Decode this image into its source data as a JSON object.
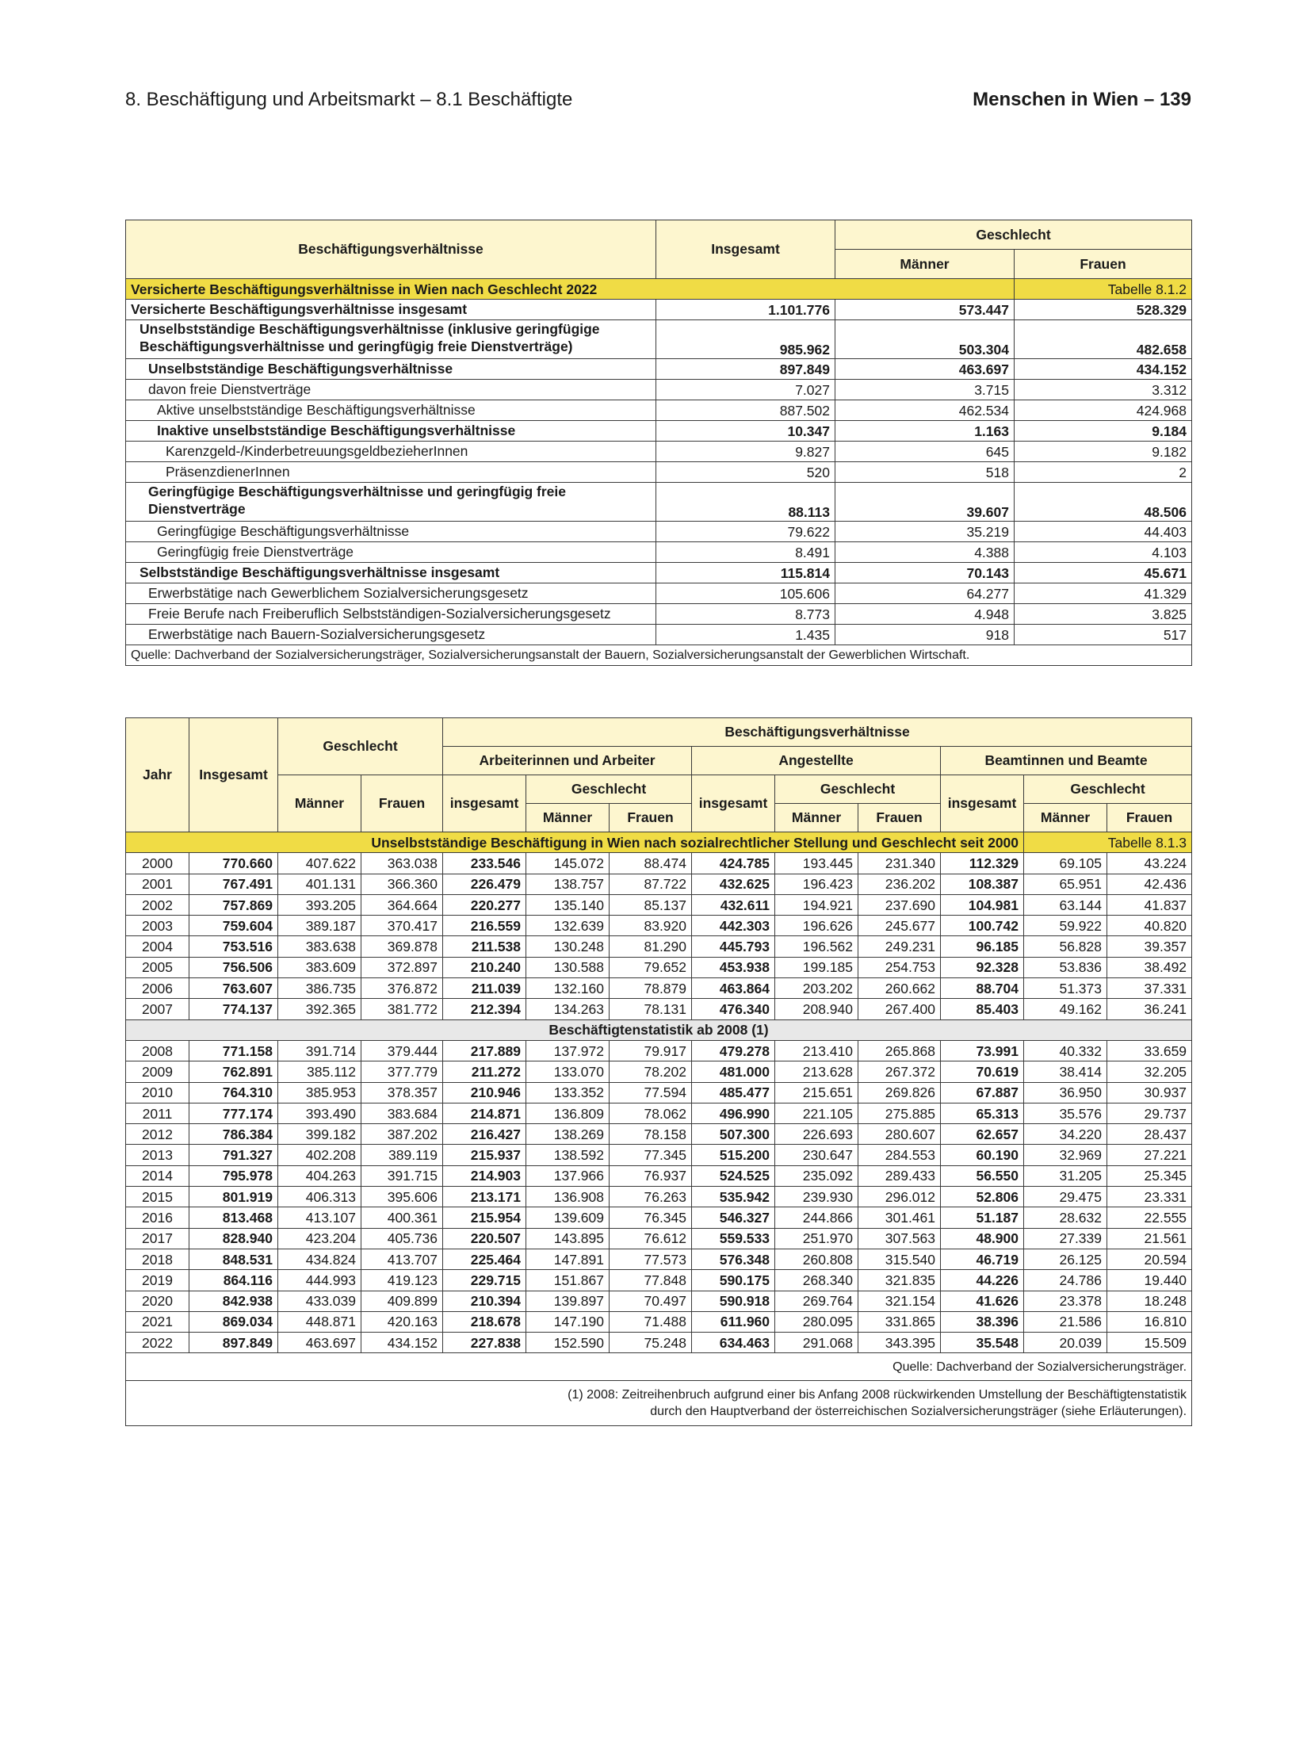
{
  "page_header": {
    "section": "8. Beschäftigung und Arbeitsmarkt – 8.1 Beschäftigte",
    "book": "Menschen in Wien – 139"
  },
  "table1": {
    "title": "Versicherte Beschäftigungsverhältnisse in Wien nach Geschlecht 2022",
    "number": "Tabelle 8.1.2",
    "headers": {
      "label": "Beschäftigungsverhältnisse",
      "total": "Insgesamt",
      "group": "Geschlecht",
      "men": "Männer",
      "women": "Frauen"
    },
    "rows": [
      {
        "label": "Versicherte Beschäftigungsverhältnisse insgesamt",
        "indent": 0,
        "bold": true,
        "values": [
          "1.101.776",
          "573.447",
          "528.329"
        ]
      },
      {
        "label": "Unselbstständige Beschäftigungsverhältnisse (inklusive geringfügige Beschäftigungsverhältnisse und geringfügig freie Dienstverträge)",
        "indent": 1,
        "bold": true,
        "two_line": true,
        "values": [
          "985.962",
          "503.304",
          "482.658"
        ]
      },
      {
        "label": "Unselbstständige Beschäftigungsverhältnisse",
        "indent": 2,
        "bold": true,
        "values": [
          "897.849",
          "463.697",
          "434.152"
        ]
      },
      {
        "label": "davon freie Dienstverträge",
        "indent": 2,
        "bold": false,
        "values": [
          "7.027",
          "3.715",
          "3.312"
        ]
      },
      {
        "label": "Aktive unselbstständige Beschäftigungsverhältnisse",
        "indent": 3,
        "bold": false,
        "values": [
          "887.502",
          "462.534",
          "424.968"
        ]
      },
      {
        "label": "Inaktive unselbstständige Beschäftigungsverhältnisse",
        "indent": 3,
        "bold": true,
        "values": [
          "10.347",
          "1.163",
          "9.184"
        ]
      },
      {
        "label": "Karenzgeld-/KinderbetreuungsgeldbezieherInnen",
        "indent": 4,
        "bold": false,
        "values": [
          "9.827",
          "645",
          "9.182"
        ]
      },
      {
        "label": "PräsenzdienerInnen",
        "indent": 4,
        "bold": false,
        "values": [
          "520",
          "518",
          "2"
        ]
      },
      {
        "label": "Geringfügige Beschäftigungsverhältnisse und geringfügig freie Dienstverträge",
        "indent": 2,
        "bold": true,
        "two_line": true,
        "values": [
          "88.113",
          "39.607",
          "48.506"
        ]
      },
      {
        "label": "Geringfügige Beschäftigungsverhältnisse",
        "indent": 3,
        "bold": false,
        "values": [
          "79.622",
          "35.219",
          "44.403"
        ]
      },
      {
        "label": "Geringfügig freie Dienstverträge",
        "indent": 3,
        "bold": false,
        "values": [
          "8.491",
          "4.388",
          "4.103"
        ]
      },
      {
        "label": "Selbstständige Beschäftigungsverhältnisse insgesamt",
        "indent": 1,
        "bold": true,
        "values": [
          "115.814",
          "70.143",
          "45.671"
        ]
      },
      {
        "label": "Erwerbstätige nach Gewerblichem Sozialversicherungsgesetz",
        "indent": 2,
        "bold": false,
        "values": [
          "105.606",
          "64.277",
          "41.329"
        ]
      },
      {
        "label": "Freie Berufe nach Freiberuflich Selbstständigen-Sozialversicherungsgesetz",
        "indent": 2,
        "bold": false,
        "values": [
          "8.773",
          "4.948",
          "3.825"
        ]
      },
      {
        "label": "Erwerbstätige nach Bauern-Sozialversicherungsgesetz",
        "indent": 2,
        "bold": false,
        "values": [
          "1.435",
          "918",
          "517"
        ]
      }
    ],
    "source": "Quelle: Dachverband der Sozialversicherungsträger, Sozialversicherungsanstalt der Bauern, Sozialversicherungsanstalt der Gewerblichen Wirtschaft."
  },
  "table2": {
    "title": "Unselbstständige Beschäftigung in Wien nach sozialrechtlicher Stellung und Geschlecht seit 2000",
    "number": "Tabelle 8.1.3",
    "headers": {
      "year": "Jahr",
      "total": "Insgesamt",
      "gender": "Geschlecht",
      "men": "Männer",
      "women": "Frauen",
      "relations": "Beschäftigungsverhältnisse",
      "workers": "Arbeiterinnen und Arbeiter",
      "employees": "Angestellte",
      "civil_servants": "Beamtinnen und Beamte",
      "subtotal": "insgesamt"
    },
    "bold_columns": [
      1,
      4,
      7,
      10
    ],
    "rows_part1": [
      [
        "2000",
        "770.660",
        "407.622",
        "363.038",
        "233.546",
        "145.072",
        "88.474",
        "424.785",
        "193.445",
        "231.340",
        "112.329",
        "69.105",
        "43.224"
      ],
      [
        "2001",
        "767.491",
        "401.131",
        "366.360",
        "226.479",
        "138.757",
        "87.722",
        "432.625",
        "196.423",
        "236.202",
        "108.387",
        "65.951",
        "42.436"
      ],
      [
        "2002",
        "757.869",
        "393.205",
        "364.664",
        "220.277",
        "135.140",
        "85.137",
        "432.611",
        "194.921",
        "237.690",
        "104.981",
        "63.144",
        "41.837"
      ],
      [
        "2003",
        "759.604",
        "389.187",
        "370.417",
        "216.559",
        "132.639",
        "83.920",
        "442.303",
        "196.626",
        "245.677",
        "100.742",
        "59.922",
        "40.820"
      ],
      [
        "2004",
        "753.516",
        "383.638",
        "369.878",
        "211.538",
        "130.248",
        "81.290",
        "445.793",
        "196.562",
        "249.231",
        "96.185",
        "56.828",
        "39.357"
      ],
      [
        "2005",
        "756.506",
        "383.609",
        "372.897",
        "210.240",
        "130.588",
        "79.652",
        "453.938",
        "199.185",
        "254.753",
        "92.328",
        "53.836",
        "38.492"
      ],
      [
        "2006",
        "763.607",
        "386.735",
        "376.872",
        "211.039",
        "132.160",
        "78.879",
        "463.864",
        "203.202",
        "260.662",
        "88.704",
        "51.373",
        "37.331"
      ],
      [
        "2007",
        "774.137",
        "392.365",
        "381.772",
        "212.394",
        "134.263",
        "78.131",
        "476.340",
        "208.940",
        "267.400",
        "85.403",
        "49.162",
        "36.241"
      ]
    ],
    "section_label": "Beschäftigtenstatistik ab 2008 (1)",
    "rows_part2": [
      [
        "2008",
        "771.158",
        "391.714",
        "379.444",
        "217.889",
        "137.972",
        "79.917",
        "479.278",
        "213.410",
        "265.868",
        "73.991",
        "40.332",
        "33.659"
      ],
      [
        "2009",
        "762.891",
        "385.112",
        "377.779",
        "211.272",
        "133.070",
        "78.202",
        "481.000",
        "213.628",
        "267.372",
        "70.619",
        "38.414",
        "32.205"
      ],
      [
        "2010",
        "764.310",
        "385.953",
        "378.357",
        "210.946",
        "133.352",
        "77.594",
        "485.477",
        "215.651",
        "269.826",
        "67.887",
        "36.950",
        "30.937"
      ],
      [
        "2011",
        "777.174",
        "393.490",
        "383.684",
        "214.871",
        "136.809",
        "78.062",
        "496.990",
        "221.105",
        "275.885",
        "65.313",
        "35.576",
        "29.737"
      ],
      [
        "2012",
        "786.384",
        "399.182",
        "387.202",
        "216.427",
        "138.269",
        "78.158",
        "507.300",
        "226.693",
        "280.607",
        "62.657",
        "34.220",
        "28.437"
      ],
      [
        "2013",
        "791.327",
        "402.208",
        "389.119",
        "215.937",
        "138.592",
        "77.345",
        "515.200",
        "230.647",
        "284.553",
        "60.190",
        "32.969",
        "27.221"
      ],
      [
        "2014",
        "795.978",
        "404.263",
        "391.715",
        "214.903",
        "137.966",
        "76.937",
        "524.525",
        "235.092",
        "289.433",
        "56.550",
        "31.205",
        "25.345"
      ],
      [
        "2015",
        "801.919",
        "406.313",
        "395.606",
        "213.171",
        "136.908",
        "76.263",
        "535.942",
        "239.930",
        "296.012",
        "52.806",
        "29.475",
        "23.331"
      ],
      [
        "2016",
        "813.468",
        "413.107",
        "400.361",
        "215.954",
        "139.609",
        "76.345",
        "546.327",
        "244.866",
        "301.461",
        "51.187",
        "28.632",
        "22.555"
      ],
      [
        "2017",
        "828.940",
        "423.204",
        "405.736",
        "220.507",
        "143.895",
        "76.612",
        "559.533",
        "251.970",
        "307.563",
        "48.900",
        "27.339",
        "21.561"
      ],
      [
        "2018",
        "848.531",
        "434.824",
        "413.707",
        "225.464",
        "147.891",
        "77.573",
        "576.348",
        "260.808",
        "315.540",
        "46.719",
        "26.125",
        "20.594"
      ],
      [
        "2019",
        "864.116",
        "444.993",
        "419.123",
        "229.715",
        "151.867",
        "77.848",
        "590.175",
        "268.340",
        "321.835",
        "44.226",
        "24.786",
        "19.440"
      ],
      [
        "2020",
        "842.938",
        "433.039",
        "409.899",
        "210.394",
        "139.897",
        "70.497",
        "590.918",
        "269.764",
        "321.154",
        "41.626",
        "23.378",
        "18.248"
      ],
      [
        "2021",
        "869.034",
        "448.871",
        "420.163",
        "218.678",
        "147.190",
        "71.488",
        "611.960",
        "280.095",
        "331.865",
        "38.396",
        "21.586",
        "16.810"
      ],
      [
        "2022",
        "897.849",
        "463.697",
        "434.152",
        "227.838",
        "152.590",
        "75.248",
        "634.463",
        "291.068",
        "343.395",
        "35.548",
        "20.039",
        "15.509"
      ]
    ],
    "source": "Quelle: Dachverband der Sozialversicherungsträger.",
    "footnote_line1": "(1) 2008: Zeitreihenbruch aufgrund einer bis Anfang 2008 rückwirkenden Umstellung der Beschäftigtenstatistik",
    "footnote_line2": "durch den Hauptverband der österreichischen Sozialversicherungsträger (siehe Erläuterungen)."
  }
}
